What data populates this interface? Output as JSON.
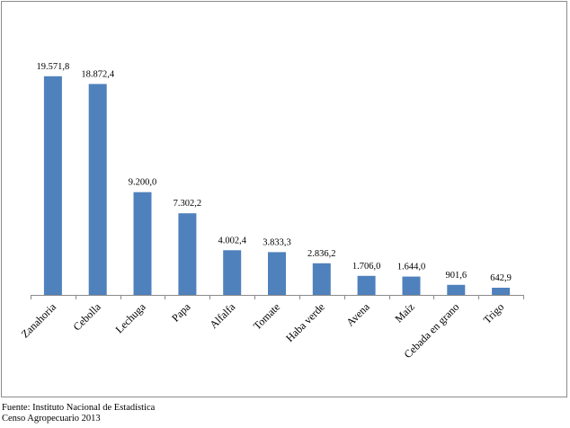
{
  "chart_data": {
    "type": "bar",
    "categories": [
      "Zanahoria",
      "Cebolla",
      "Lechuga",
      "Papa",
      "Alfalfa",
      "Tomate",
      "Haba verde",
      "Avena",
      "Maíz",
      "Cebada en grano",
      "Trigo"
    ],
    "values": [
      19571.8,
      18872.4,
      9200.0,
      7302.2,
      4002.4,
      3833.3,
      2836.2,
      1706.0,
      1644.0,
      901.6,
      642.9
    ],
    "data_labels": [
      "19.571,8",
      "18.872,4",
      "9.200,0",
      "7.302,2",
      "4.002,4",
      "3.833,3",
      "2.836,2",
      "1.706,0",
      "1.644,0",
      "901,6",
      "642,9"
    ],
    "ylim": [
      0,
      21000
    ],
    "grid": false,
    "legend": "none",
    "bar_color": "#4f81bd"
  },
  "source": {
    "line1": "Fuente: Instituto Nacional de Estadística",
    "line2": "Censo Agropecuario 2013"
  }
}
